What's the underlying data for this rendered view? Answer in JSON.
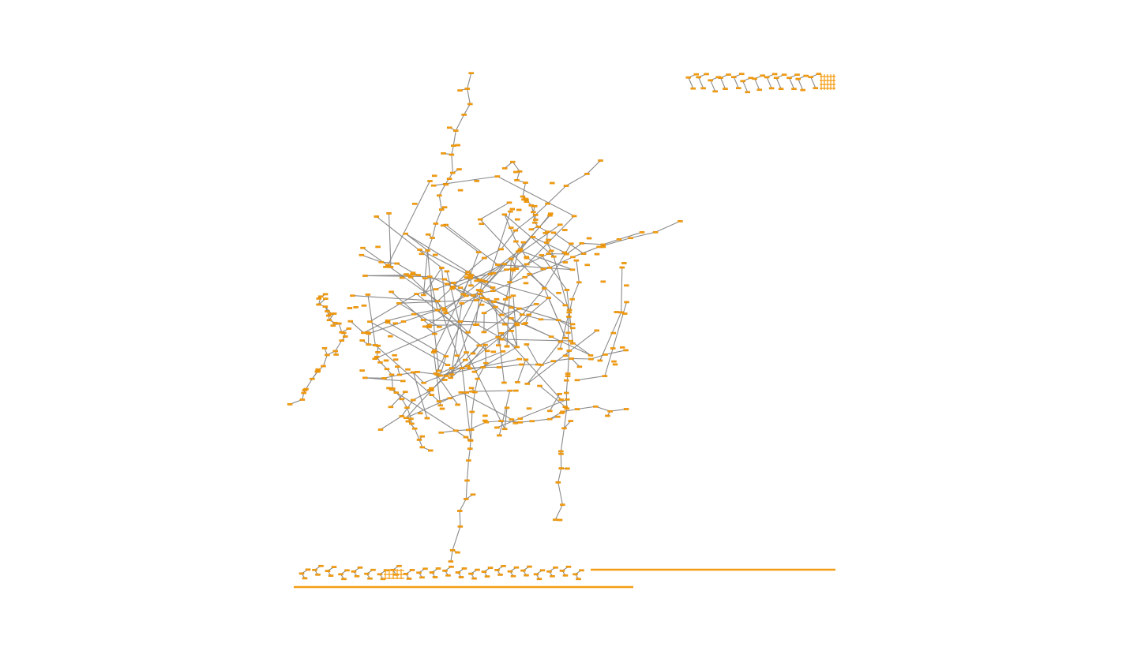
{
  "graph": {
    "node_color": "#f39c12",
    "edge_color": "#8a8a8a",
    "background": "#ffffff"
  }
}
